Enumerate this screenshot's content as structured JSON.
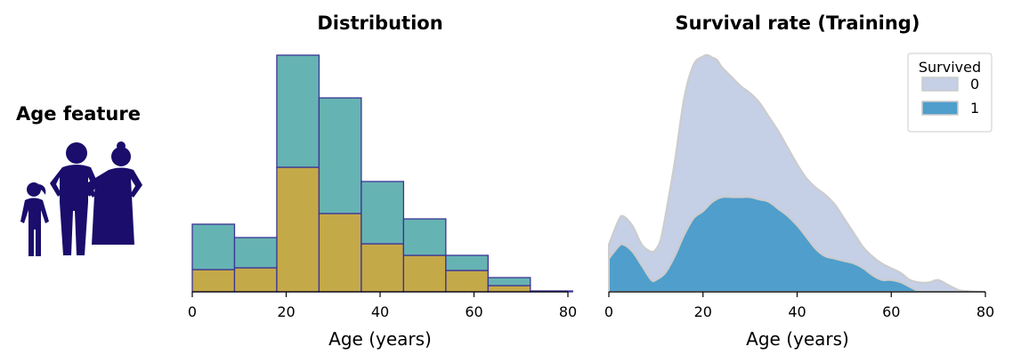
{
  "panel": {
    "feature_title": "Age feature",
    "icon_color": "#1a0d6b",
    "icons": [
      "girl-icon",
      "man-icon",
      "woman-icon"
    ]
  },
  "chart_data": [
    {
      "type": "bar",
      "title": "Distribution",
      "xlabel": "Age (years)",
      "ylabel": "",
      "xlim": [
        0,
        80
      ],
      "xticks": [
        "0",
        "20",
        "40",
        "60",
        "80"
      ],
      "bin_edges": [
        0,
        9,
        18,
        27,
        36,
        45,
        54,
        63,
        72,
        81
      ],
      "stacked": true,
      "series": [
        {
          "color": "#c4a948",
          "values": [
            25,
            27,
            140,
            88,
            54,
            41,
            24,
            7,
            1
          ]
        },
        {
          "color": "#66b3b3",
          "values": [
            51,
            34,
            126,
            130,
            70,
            41,
            17,
            9,
            0
          ]
        }
      ],
      "edge_color": "#3d3596",
      "grid": false
    },
    {
      "type": "area",
      "title": "Survival rate (Training)",
      "xlabel": "Age (years)",
      "ylabel": "",
      "xlim": [
        0,
        80
      ],
      "xticks": [
        "0",
        "20",
        "40",
        "60",
        "80"
      ],
      "legend": {
        "title": "Survived",
        "position": "top-right"
      },
      "grid": false,
      "series": [
        {
          "name": "0",
          "color": "#c5cfe5",
          "x": [
            0,
            2,
            3,
            5,
            7,
            9,
            10,
            11,
            12,
            14,
            16,
            18,
            20,
            21,
            22,
            23,
            24,
            26,
            28,
            30,
            32,
            34,
            36,
            38,
            40,
            42,
            44,
            46,
            48,
            50,
            52,
            54,
            56,
            58,
            60,
            62,
            64,
            66,
            68,
            70,
            72,
            74,
            75,
            77,
            80
          ],
          "values": [
            0.2,
            0.3,
            0.32,
            0.28,
            0.2,
            0.17,
            0.18,
            0.22,
            0.32,
            0.55,
            0.82,
            0.96,
            0.995,
            1.0,
            0.99,
            0.98,
            0.95,
            0.91,
            0.87,
            0.84,
            0.8,
            0.74,
            0.68,
            0.61,
            0.54,
            0.48,
            0.44,
            0.41,
            0.37,
            0.31,
            0.25,
            0.19,
            0.15,
            0.12,
            0.1,
            0.08,
            0.05,
            0.04,
            0.04,
            0.05,
            0.03,
            0.01,
            0.005,
            0.002,
            0.0
          ]
        },
        {
          "name": "1",
          "color": "#4f9ecb",
          "x": [
            0,
            2,
            3,
            5,
            7,
            9,
            10,
            12,
            14,
            16,
            18,
            20,
            22,
            24,
            26,
            28,
            30,
            32,
            34,
            36,
            38,
            40,
            42,
            44,
            46,
            48,
            50,
            52,
            54,
            56,
            58,
            60,
            62,
            64,
            65,
            66
          ],
          "values": [
            0.14,
            0.19,
            0.2,
            0.17,
            0.11,
            0.05,
            0.05,
            0.08,
            0.15,
            0.24,
            0.31,
            0.34,
            0.38,
            0.4,
            0.4,
            0.4,
            0.4,
            0.39,
            0.38,
            0.35,
            0.32,
            0.28,
            0.23,
            0.18,
            0.15,
            0.14,
            0.13,
            0.12,
            0.1,
            0.07,
            0.05,
            0.05,
            0.04,
            0.02,
            0.01,
            0.0
          ]
        }
      ]
    }
  ]
}
